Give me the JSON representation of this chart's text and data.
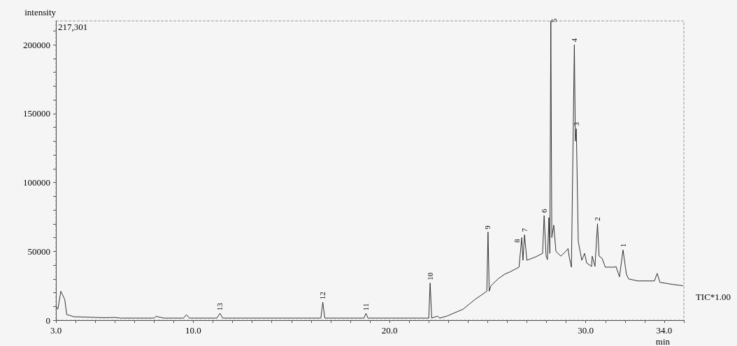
{
  "chart_data": {
    "type": "line",
    "xlabel": "min",
    "ylabel": "intensity",
    "x": [
      3.0,
      3.1,
      3.25,
      3.45,
      3.55,
      3.7,
      3.9,
      4.0,
      5.0,
      5.5,
      6.0,
      6.3,
      8.0,
      8.1,
      8.5,
      9.5,
      9.65,
      9.8,
      11.2,
      11.36,
      11.5,
      16.5,
      16.6,
      16.7,
      18.7,
      18.8,
      18.9,
      22.0,
      22.07,
      22.15,
      22.45,
      22.55,
      22.93,
      23.75,
      24.35,
      24.96,
      25.02,
      25.08,
      25.17,
      25.53,
      25.88,
      26.13,
      26.6,
      26.74,
      26.8,
      26.88,
      27.0,
      27.45,
      27.8,
      27.88,
      27.98,
      28.05,
      28.12,
      28.17,
      28.22,
      28.27,
      28.37,
      28.48,
      28.73,
      29.05,
      29.1,
      29.15,
      29.27,
      29.42,
      29.47,
      29.52,
      29.62,
      29.8,
      29.94,
      30.05,
      30.3,
      30.33,
      30.47,
      30.6,
      30.68,
      30.83,
      31.0,
      31.47,
      31.54,
      31.72,
      31.9,
      32.07,
      32.18,
      32.65,
      33.5,
      33.64,
      33.78,
      34.42,
      34.96
    ],
    "series": [
      {
        "name": "TIC*1.00",
        "color": "#333333",
        "values": [
          10000,
          8000,
          21000,
          15000,
          4000,
          3500,
          2500,
          2500,
          2000,
          1800,
          2000,
          1500,
          1500,
          2800,
          1500,
          1500,
          4000,
          1500,
          1500,
          5000,
          1500,
          1500,
          13000,
          1500,
          1500,
          5000,
          1500,
          1500,
          27000,
          1500,
          3000,
          1500,
          3000,
          8000,
          15000,
          21000,
          64000,
          21000,
          25000,
          30000,
          33500,
          35000,
          38500,
          60000,
          43500,
          62000,
          43500,
          46000,
          48500,
          76000,
          46500,
          44000,
          74500,
          48500,
          217301,
          60000,
          69000,
          50000,
          46500,
          51000,
          52000,
          46500,
          38500,
          200000,
          130000,
          139000,
          57000,
          43500,
          48500,
          41500,
          39000,
          46500,
          39000,
          70000,
          46500,
          45000,
          38500,
          38500,
          39000,
          31500,
          51000,
          33500,
          30000,
          28500,
          28500,
          34000,
          27500,
          26000,
          25000
        ]
      }
    ],
    "xlim": [
      3,
      35
    ],
    "xticks": [
      {
        "value": 3,
        "label": "3.0"
      },
      {
        "value": 4,
        "label": null
      },
      {
        "value": 5,
        "label": null
      },
      {
        "value": 6,
        "label": null
      },
      {
        "value": 7,
        "label": null
      },
      {
        "value": 8,
        "label": null
      },
      {
        "value": 9,
        "label": null
      },
      {
        "value": 10,
        "label": "10.0"
      },
      {
        "value": 11,
        "label": null
      },
      {
        "value": 12,
        "label": null
      },
      {
        "value": 13,
        "label": null
      },
      {
        "value": 14,
        "label": null
      },
      {
        "value": 15,
        "label": null
      },
      {
        "value": 16,
        "label": null
      },
      {
        "value": 17,
        "label": null
      },
      {
        "value": 18,
        "label": null
      },
      {
        "value": 19,
        "label": null
      },
      {
        "value": 20,
        "label": "20.0"
      },
      {
        "value": 21,
        "label": null
      },
      {
        "value": 22,
        "label": null
      },
      {
        "value": 23,
        "label": null
      },
      {
        "value": 24,
        "label": null
      },
      {
        "value": 25,
        "label": null
      },
      {
        "value": 26,
        "label": null
      },
      {
        "value": 27,
        "label": null
      },
      {
        "value": 28,
        "label": null
      },
      {
        "value": 29,
        "label": null
      },
      {
        "value": 30,
        "label": "30.0"
      },
      {
        "value": 31,
        "label": null
      },
      {
        "value": 32,
        "label": null
      },
      {
        "value": 33,
        "label": null
      },
      {
        "value": 34,
        "label": "34.0"
      },
      {
        "value": 35,
        "label": null
      }
    ],
    "ylim": [
      0,
      217301
    ],
    "yticks": [
      0,
      {
        "value": 10000,
        "label": null
      },
      {
        "value": 20000,
        "label": null
      },
      {
        "value": 30000,
        "label": null
      },
      {
        "value": 40000,
        "label": null
      },
      50000,
      {
        "value": 60000,
        "label": null
      },
      {
        "value": 70000,
        "label": null
      },
      {
        "value": 80000,
        "label": null
      },
      {
        "value": 90000,
        "label": null
      },
      100000,
      {
        "value": 110000,
        "label": null
      },
      {
        "value": 120000,
        "label": null
      },
      {
        "value": 130000,
        "label": null
      },
      {
        "value": 140000,
        "label": null
      },
      150000,
      {
        "value": 160000,
        "label": null
      },
      {
        "value": 170000,
        "label": null
      },
      {
        "value": 180000,
        "label": null
      },
      {
        "value": 190000,
        "label": null
      },
      200000,
      {
        "value": 210000,
        "label": null
      }
    ],
    "annotations": [
      "217,301",
      {
        "text": "1",
        "x": 31.9,
        "y": 51000
      },
      {
        "text": "2",
        "x": 30.6,
        "y": 70000
      },
      {
        "text": "3",
        "x": 29.52,
        "y": 139000
      },
      {
        "text": "4",
        "x": 29.42,
        "y": 200000
      },
      {
        "text": "5",
        "x": 28.22,
        "y": 217301
      },
      {
        "text": "6",
        "x": 27.88,
        "y": 76000
      },
      {
        "text": "7",
        "x": 26.88,
        "y": 62000
      },
      {
        "text": "8",
        "x": 26.74,
        "y": 60000
      },
      {
        "text": "9",
        "x": 25.02,
        "y": 64000
      },
      {
        "text": "10",
        "x": 22.07,
        "y": 27000
      },
      {
        "text": "11",
        "x": 18.8,
        "y": 5000
      },
      {
        "text": "12",
        "x": 16.6,
        "y": 13000
      },
      {
        "text": "13",
        "x": 11.36,
        "y": 5000
      }
    ],
    "grid": false,
    "marker": "none",
    "line_style": "solid"
  }
}
